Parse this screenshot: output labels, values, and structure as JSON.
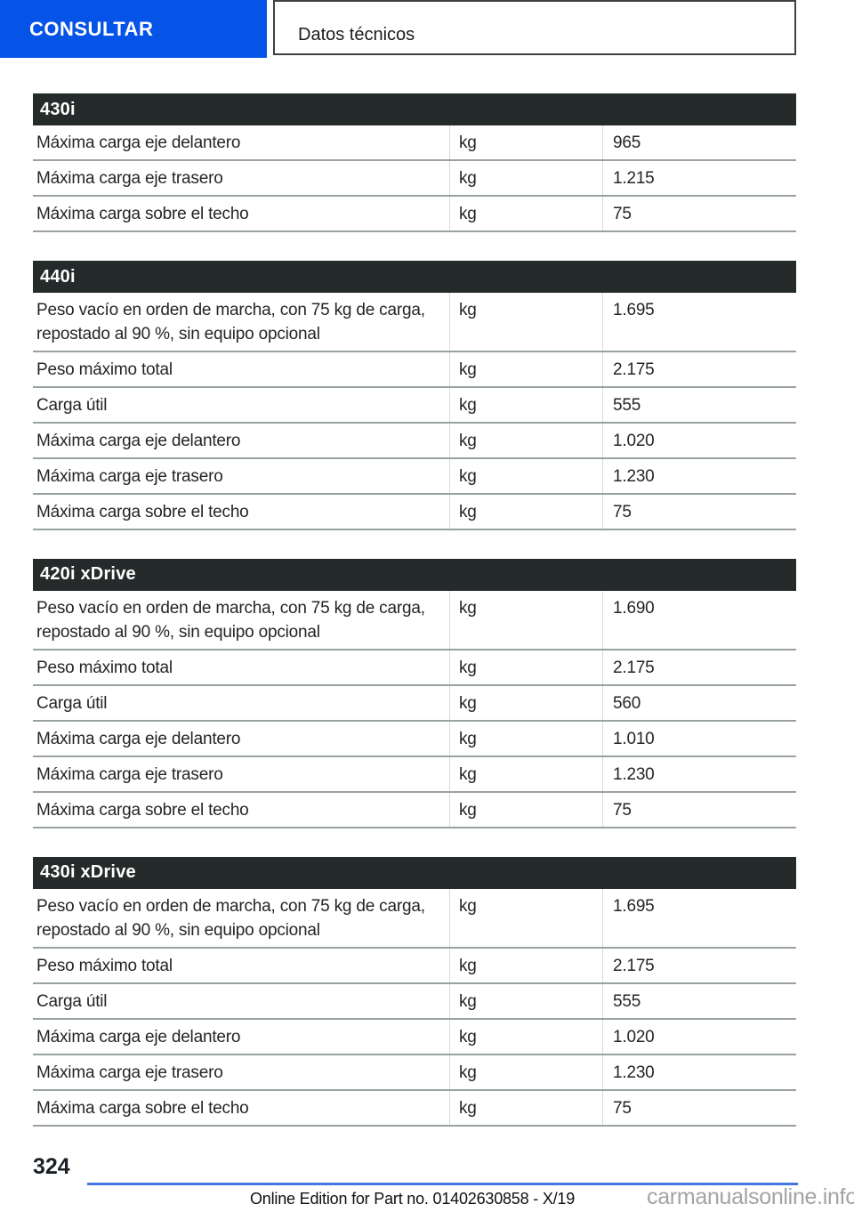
{
  "header": {
    "tab_label": "CONSULTAR",
    "section_title": "Datos técnicos"
  },
  "tables": [
    {
      "title": "430i",
      "rows": [
        {
          "label": "Máxima carga eje delantero",
          "unit": "kg",
          "value": "965"
        },
        {
          "label": "Máxima carga eje trasero",
          "unit": "kg",
          "value": "1.215"
        },
        {
          "label": "Máxima carga sobre el techo",
          "unit": "kg",
          "value": "75"
        }
      ]
    },
    {
      "title": "440i",
      "rows": [
        {
          "label": "Peso vacío en orden de marcha, con 75 kg de carga, repostado al 90 %, sin equipo opcional",
          "unit": "kg",
          "value": "1.695"
        },
        {
          "label": "Peso máximo total",
          "unit": "kg",
          "value": "2.175"
        },
        {
          "label": "Carga útil",
          "unit": "kg",
          "value": "555"
        },
        {
          "label": "Máxima carga eje delantero",
          "unit": "kg",
          "value": "1.020"
        },
        {
          "label": "Máxima carga eje trasero",
          "unit": "kg",
          "value": "1.230"
        },
        {
          "label": "Máxima carga sobre el techo",
          "unit": "kg",
          "value": "75"
        }
      ]
    },
    {
      "title": "420i xDrive",
      "rows": [
        {
          "label": "Peso vacío en orden de marcha, con 75 kg de carga, repostado al 90 %, sin equipo opcional",
          "unit": "kg",
          "value": "1.690"
        },
        {
          "label": "Peso máximo total",
          "unit": "kg",
          "value": "2.175"
        },
        {
          "label": "Carga útil",
          "unit": "kg",
          "value": "560"
        },
        {
          "label": "Máxima carga eje delantero",
          "unit": "kg",
          "value": "1.010"
        },
        {
          "label": "Máxima carga eje trasero",
          "unit": "kg",
          "value": "1.230"
        },
        {
          "label": "Máxima carga sobre el techo",
          "unit": "kg",
          "value": "75"
        }
      ]
    },
    {
      "title": "430i xDrive",
      "rows": [
        {
          "label": "Peso vacío en orden de marcha, con 75 kg de carga, repostado al 90 %, sin equipo opcional",
          "unit": "kg",
          "value": "1.695"
        },
        {
          "label": "Peso máximo total",
          "unit": "kg",
          "value": "2.175"
        },
        {
          "label": "Carga útil",
          "unit": "kg",
          "value": "555"
        },
        {
          "label": "Máxima carga eje delantero",
          "unit": "kg",
          "value": "1.020"
        },
        {
          "label": "Máxima carga eje trasero",
          "unit": "kg",
          "value": "1.230"
        },
        {
          "label": "Máxima carga sobre el techo",
          "unit": "kg",
          "value": "75"
        }
      ]
    }
  ],
  "footer": {
    "page_number": "324",
    "edition_note": "Online Edition for Part no. 01402630858 - X/19",
    "watermark": "carmanualsonline.info"
  },
  "colors": {
    "accent_blue": "#0653e8",
    "table_header_bg": "#252a2a",
    "footer_rule_blue": "#4577e0",
    "row_separator": "#99a1a1"
  }
}
